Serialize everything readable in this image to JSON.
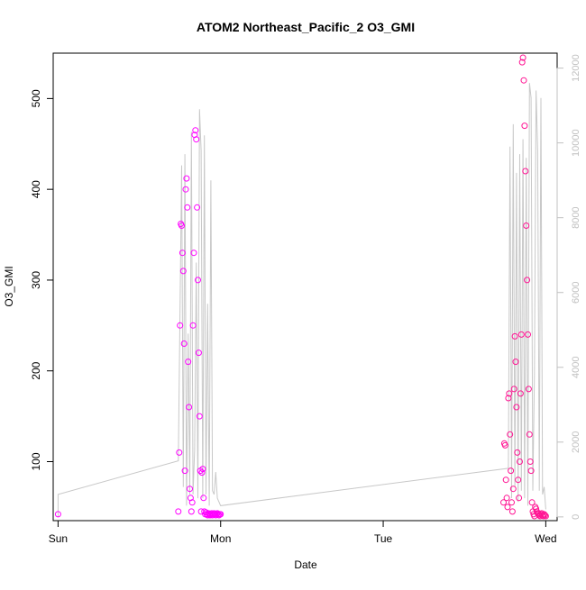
{
  "chart_data": {
    "type": "scatter",
    "title": "ATOM2 Northeast_Pacific_2 O3_GMI",
    "xlabel": "Date",
    "ylabel": "O3_GMI",
    "x_ticks": [
      "Sun",
      "Mon",
      "Tue",
      "Wed"
    ],
    "xlim": [
      -0.03,
      3.07
    ],
    "ylim": [
      35,
      550
    ],
    "y_ticks": [
      100,
      200,
      300,
      400,
      500
    ],
    "y2_ticks": [
      0,
      2000,
      4000,
      6000,
      8000,
      10000,
      12000
    ],
    "y2lim": [
      -100,
      12400
    ],
    "grid": false,
    "colors": {
      "o3_start": "#ff00ff",
      "o3_end": "#ff1493",
      "altitude_line": "#c8c8c8",
      "axis": "#000000",
      "secondary_axis": "#c0c0c0"
    },
    "series": [
      {
        "role": "altitude",
        "axis": "right",
        "x": [
          0.0,
          0.0,
          0.74,
          0.76,
          0.77,
          0.78,
          0.79,
          0.8,
          0.81,
          0.82,
          0.83,
          0.84,
          0.85,
          0.86,
          0.87,
          0.88,
          0.89,
          0.9,
          0.91,
          0.92,
          0.93,
          0.94,
          0.95,
          0.96,
          0.97,
          0.98,
          1.0,
          2.77,
          2.78,
          2.79,
          2.8,
          2.81,
          2.82,
          2.83,
          2.84,
          2.85,
          2.86,
          2.87,
          2.88,
          2.89,
          2.9,
          2.91,
          2.92,
          2.93,
          2.94,
          2.95,
          2.96,
          2.97,
          2.98,
          2.99,
          3.0
        ],
        "y": [
          0,
          600,
          1500,
          9400,
          800,
          9700,
          300,
          4900,
          600,
          10300,
          600,
          1800,
          6800,
          500,
          10900,
          9800,
          500,
          10200,
          600,
          5700,
          300,
          9000,
          700,
          600,
          1200,
          500,
          300,
          1300,
          9900,
          500,
          10500,
          800,
          9200,
          400,
          9700,
          700,
          10100,
          500,
          9600,
          300,
          11600,
          11200,
          700,
          3800,
          11400,
          9800,
          700,
          11200,
          600,
          800,
          200
        ]
      },
      {
        "role": "o3",
        "axis": "left",
        "x": [
          0.0,
          0.74,
          0.745,
          0.75,
          0.755,
          0.76,
          0.765,
          0.77,
          0.775,
          0.78,
          0.785,
          0.79,
          0.795,
          0.8,
          0.805,
          0.81,
          0.815,
          0.82,
          0.825,
          0.83,
          0.835,
          0.84,
          0.845,
          0.85,
          0.855,
          0.86,
          0.865,
          0.87,
          0.875,
          0.88,
          0.885,
          0.89,
          0.895,
          0.9,
          0.905,
          0.91,
          0.915,
          0.92,
          0.925,
          0.93,
          0.935,
          0.94,
          0.945,
          0.95,
          0.955,
          0.96,
          0.965,
          0.97,
          0.975,
          0.98,
          0.985,
          0.99,
          0.995,
          1.0,
          2.74,
          2.745,
          2.75,
          2.755,
          2.76,
          2.765,
          2.77,
          2.775,
          2.78,
          2.785,
          2.79,
          2.795,
          2.8,
          2.805,
          2.81,
          2.815,
          2.82,
          2.825,
          2.83,
          2.835,
          2.84,
          2.845,
          2.85,
          2.855,
          2.86,
          2.865,
          2.87,
          2.875,
          2.88,
          2.885,
          2.89,
          2.895,
          2.9,
          2.905,
          2.91,
          2.915,
          2.92,
          2.925,
          2.93,
          2.935,
          2.94,
          2.945,
          2.95,
          2.955,
          2.96,
          2.965,
          2.97,
          2.975,
          2.98,
          2.985,
          2.99,
          2.995,
          3.0
        ],
        "y": [
          42,
          45,
          110,
          250,
          362,
          360,
          330,
          310,
          230,
          90,
          400,
          412,
          380,
          210,
          160,
          70,
          60,
          45,
          55,
          250,
          330,
          460,
          465,
          455,
          380,
          300,
          220,
          150,
          90,
          45,
          88,
          92,
          60,
          45,
          42,
          44,
          42,
          41,
          43,
          42,
          41,
          42,
          43,
          41,
          42,
          43,
          42,
          41,
          42,
          43,
          42,
          41,
          42,
          42,
          55,
          120,
          118,
          80,
          60,
          50,
          170,
          175,
          130,
          90,
          55,
          45,
          70,
          180,
          238,
          210,
          160,
          110,
          80,
          60,
          100,
          175,
          240,
          540,
          545,
          520,
          470,
          420,
          360,
          300,
          240,
          180,
          130,
          100,
          90,
          55,
          45,
          42,
          40,
          50,
          48,
          45,
          43,
          42,
          41,
          40,
          42,
          43,
          41,
          40,
          42,
          41,
          40
        ]
      }
    ]
  }
}
